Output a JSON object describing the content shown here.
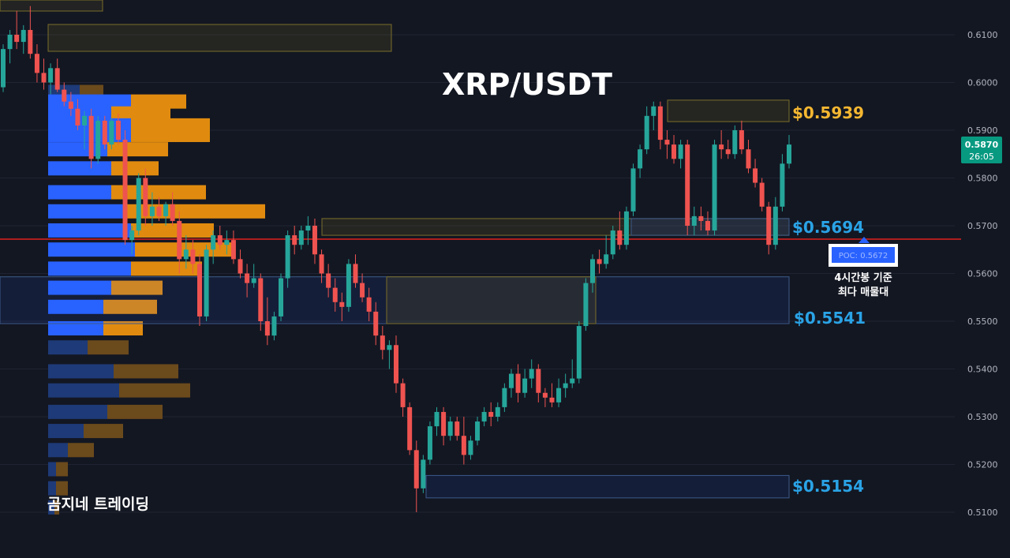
{
  "title": "XRP/USDT",
  "watermark": "곰지네 트레이딩",
  "colors": {
    "background": "#131722",
    "up": "#26a69a",
    "down": "#ef5350",
    "poc_line": "#e0201d",
    "level_gold": "#f5b731",
    "level_blue": "#2aa3e6",
    "vp_blue": "#2962ff",
    "vp_orange": "#e08b0f"
  },
  "price_tag": {
    "price": "0.5870",
    "countdown": "26:05"
  },
  "poc_label": "POC: 0.5672",
  "annotation_lines": [
    "4시간봉 기준",
    "최다 매물대"
  ],
  "levels": [
    {
      "label": "$0.5939",
      "color": "gold"
    },
    {
      "label": "$0.5694",
      "color": "blue"
    },
    {
      "label": "$0.5541",
      "color": "blue"
    },
    {
      "label": "$0.5154",
      "color": "blue"
    }
  ],
  "chart_data": {
    "type": "candlestick",
    "symbol": "XRP/USDT",
    "timeframe_note": "4시간봉 기준",
    "ylim": [
      0.509,
      0.6125
    ],
    "y_ticks": [
      "0.6100",
      "0.6000",
      "0.5900",
      "0.5800",
      "0.5700",
      "0.5600",
      "0.5500",
      "0.5400",
      "0.5300",
      "0.5200",
      "0.5100"
    ],
    "last_price": 0.587,
    "poc": 0.5672,
    "key_levels": [
      0.5939,
      0.5694,
      0.5541,
      0.5154
    ],
    "candles": [
      [
        0.599,
        0.608,
        0.598,
        0.607
      ],
      [
        0.607,
        0.611,
        0.604,
        0.61
      ],
      [
        0.61,
        0.615,
        0.607,
        0.6085
      ],
      [
        0.6085,
        0.612,
        0.606,
        0.611
      ],
      [
        0.611,
        0.616,
        0.605,
        0.606
      ],
      [
        0.606,
        0.608,
        0.6,
        0.602
      ],
      [
        0.602,
        0.605,
        0.5985,
        0.6
      ],
      [
        0.6,
        0.604,
        0.5975,
        0.603
      ],
      [
        0.603,
        0.605,
        0.598,
        0.5985
      ],
      [
        0.5985,
        0.6,
        0.595,
        0.596
      ],
      [
        0.596,
        0.598,
        0.593,
        0.5945
      ],
      [
        0.5945,
        0.5965,
        0.59,
        0.591
      ],
      [
        0.591,
        0.594,
        0.586,
        0.593
      ],
      [
        0.593,
        0.5945,
        0.582,
        0.584
      ],
      [
        0.584,
        0.593,
        0.583,
        0.592
      ],
      [
        0.592,
        0.593,
        0.586,
        0.587
      ],
      [
        0.587,
        0.5925,
        0.586,
        0.592
      ],
      [
        0.592,
        0.5935,
        0.587,
        0.588
      ],
      [
        0.588,
        0.59,
        0.566,
        0.567
      ],
      [
        0.567,
        0.57,
        0.564,
        0.569
      ],
      [
        0.569,
        0.581,
        0.568,
        0.58
      ],
      [
        0.58,
        0.582,
        0.57,
        0.572
      ],
      [
        0.572,
        0.577,
        0.57,
        0.574
      ],
      [
        0.574,
        0.576,
        0.571,
        0.572
      ],
      [
        0.572,
        0.575,
        0.57,
        0.5745
      ],
      [
        0.5745,
        0.577,
        0.57,
        0.571
      ],
      [
        0.571,
        0.573,
        0.56,
        0.563
      ],
      [
        0.563,
        0.568,
        0.561,
        0.565
      ],
      [
        0.565,
        0.567,
        0.56,
        0.562
      ],
      [
        0.562,
        0.564,
        0.549,
        0.551
      ],
      [
        0.551,
        0.566,
        0.55,
        0.565
      ],
      [
        0.565,
        0.569,
        0.562,
        0.568
      ],
      [
        0.568,
        0.57,
        0.565,
        0.566
      ],
      [
        0.566,
        0.569,
        0.564,
        0.567
      ],
      [
        0.567,
        0.569,
        0.562,
        0.563
      ],
      [
        0.563,
        0.565,
        0.559,
        0.56
      ],
      [
        0.56,
        0.562,
        0.555,
        0.558
      ],
      [
        0.558,
        0.562,
        0.557,
        0.559
      ],
      [
        0.559,
        0.56,
        0.548,
        0.55
      ],
      [
        0.55,
        0.555,
        0.545,
        0.547
      ],
      [
        0.547,
        0.552,
        0.546,
        0.551
      ],
      [
        0.551,
        0.56,
        0.55,
        0.559
      ],
      [
        0.559,
        0.569,
        0.557,
        0.568
      ],
      [
        0.568,
        0.57,
        0.564,
        0.566
      ],
      [
        0.566,
        0.57,
        0.565,
        0.569
      ],
      [
        0.569,
        0.572,
        0.566,
        0.57
      ],
      [
        0.57,
        0.5715,
        0.562,
        0.564
      ],
      [
        0.564,
        0.565,
        0.558,
        0.56
      ],
      [
        0.56,
        0.562,
        0.555,
        0.557
      ],
      [
        0.557,
        0.559,
        0.552,
        0.554
      ],
      [
        0.554,
        0.556,
        0.55,
        0.553
      ],
      [
        0.553,
        0.563,
        0.552,
        0.562
      ],
      [
        0.562,
        0.564,
        0.557,
        0.558
      ],
      [
        0.558,
        0.56,
        0.554,
        0.555
      ],
      [
        0.555,
        0.557,
        0.55,
        0.552
      ],
      [
        0.552,
        0.554,
        0.545,
        0.547
      ],
      [
        0.547,
        0.549,
        0.542,
        0.544
      ],
      [
        0.544,
        0.546,
        0.54,
        0.545
      ],
      [
        0.545,
        0.547,
        0.535,
        0.537
      ],
      [
        0.537,
        0.538,
        0.53,
        0.532
      ],
      [
        0.532,
        0.533,
        0.522,
        0.523
      ],
      [
        0.523,
        0.525,
        0.51,
        0.515
      ],
      [
        0.515,
        0.522,
        0.514,
        0.521
      ],
      [
        0.521,
        0.529,
        0.52,
        0.528
      ],
      [
        0.528,
        0.532,
        0.526,
        0.531
      ],
      [
        0.531,
        0.532,
        0.524,
        0.526
      ],
      [
        0.526,
        0.53,
        0.525,
        0.529
      ],
      [
        0.529,
        0.53,
        0.525,
        0.526
      ],
      [
        0.526,
        0.53,
        0.52,
        0.522
      ],
      [
        0.522,
        0.526,
        0.521,
        0.525
      ],
      [
        0.525,
        0.53,
        0.524,
        0.529
      ],
      [
        0.529,
        0.532,
        0.528,
        0.531
      ],
      [
        0.531,
        0.533,
        0.528,
        0.53
      ],
      [
        0.53,
        0.533,
        0.529,
        0.532
      ],
      [
        0.532,
        0.537,
        0.531,
        0.536
      ],
      [
        0.536,
        0.54,
        0.534,
        0.539
      ],
      [
        0.539,
        0.541,
        0.533,
        0.535
      ],
      [
        0.535,
        0.54,
        0.534,
        0.538
      ],
      [
        0.538,
        0.542,
        0.536,
        0.54
      ],
      [
        0.54,
        0.541,
        0.533,
        0.535
      ],
      [
        0.535,
        0.536,
        0.532,
        0.534
      ],
      [
        0.534,
        0.537,
        0.532,
        0.533
      ],
      [
        0.533,
        0.538,
        0.532,
        0.536
      ],
      [
        0.536,
        0.539,
        0.534,
        0.537
      ],
      [
        0.537,
        0.542,
        0.536,
        0.538
      ],
      [
        0.538,
        0.55,
        0.537,
        0.549
      ],
      [
        0.549,
        0.559,
        0.548,
        0.558
      ],
      [
        0.558,
        0.564,
        0.556,
        0.563
      ],
      [
        0.563,
        0.565,
        0.56,
        0.562
      ],
      [
        0.562,
        0.568,
        0.561,
        0.564
      ],
      [
        0.564,
        0.57,
        0.563,
        0.569
      ],
      [
        0.569,
        0.573,
        0.565,
        0.566
      ],
      [
        0.566,
        0.574,
        0.565,
        0.573
      ],
      [
        0.573,
        0.583,
        0.572,
        0.582
      ],
      [
        0.582,
        0.587,
        0.58,
        0.586
      ],
      [
        0.586,
        0.595,
        0.585,
        0.593
      ],
      [
        0.593,
        0.596,
        0.59,
        0.595
      ],
      [
        0.595,
        0.596,
        0.586,
        0.588
      ],
      [
        0.588,
        0.59,
        0.584,
        0.587
      ],
      [
        0.587,
        0.589,
        0.583,
        0.584
      ],
      [
        0.584,
        0.588,
        0.582,
        0.587
      ],
      [
        0.587,
        0.588,
        0.568,
        0.57
      ],
      [
        0.57,
        0.574,
        0.568,
        0.572
      ],
      [
        0.572,
        0.574,
        0.569,
        0.571
      ],
      [
        0.571,
        0.573,
        0.568,
        0.569
      ],
      [
        0.569,
        0.588,
        0.568,
        0.587
      ],
      [
        0.587,
        0.59,
        0.584,
        0.586
      ],
      [
        0.586,
        0.588,
        0.584,
        0.585
      ],
      [
        0.585,
        0.591,
        0.584,
        0.59
      ],
      [
        0.59,
        0.592,
        0.585,
        0.586
      ],
      [
        0.586,
        0.588,
        0.581,
        0.582
      ],
      [
        0.582,
        0.584,
        0.578,
        0.579
      ],
      [
        0.579,
        0.58,
        0.573,
        0.574
      ],
      [
        0.574,
        0.575,
        0.564,
        0.566
      ],
      [
        0.566,
        0.576,
        0.565,
        0.574
      ],
      [
        0.574,
        0.585,
        0.573,
        0.583
      ],
      [
        0.583,
        0.589,
        0.582,
        0.587
      ]
    ]
  }
}
